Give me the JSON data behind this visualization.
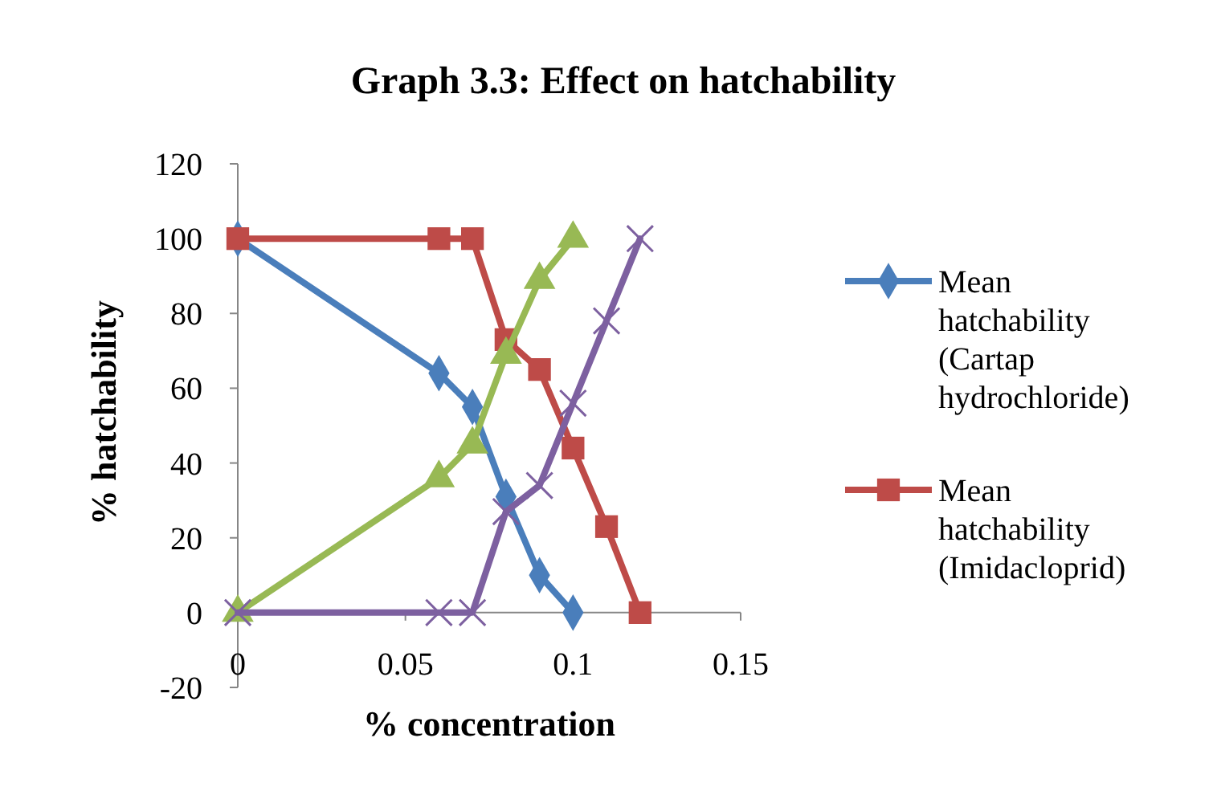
{
  "chart_data": {
    "type": "line",
    "title": "Graph 3.3: Effect on hatchability",
    "xlabel": "% concentration",
    "ylabel": "% hatchability",
    "xlim": [
      0,
      0.15
    ],
    "xticks": [
      0,
      0.05,
      0.1,
      0.15
    ],
    "ylim": [
      -20,
      120
    ],
    "yticks": [
      -20,
      0,
      20,
      40,
      60,
      80,
      100,
      120
    ],
    "grid": false,
    "legend": "right",
    "series": [
      {
        "name": "Mean hatchability (Cartap hydrochloride)",
        "color": "#4a7ebb",
        "marker": "diamond",
        "x": [
          0,
          0.06,
          0.07,
          0.08,
          0.09,
          0.1
        ],
        "values": [
          100,
          64,
          55,
          31,
          10,
          0
        ]
      },
      {
        "name": "Mean hatchability (Imidacloprid)",
        "color": "#be4b48",
        "marker": "square",
        "x": [
          0,
          0.06,
          0.07,
          0.08,
          0.09,
          0.1,
          0.11,
          0.12
        ],
        "values": [
          100,
          100,
          100,
          73,
          65,
          44,
          23,
          0
        ]
      },
      {
        "color": "#98b954",
        "marker": "triangle",
        "x": [
          0,
          0.06,
          0.07,
          0.08,
          0.09,
          0.1
        ],
        "values": [
          0,
          36,
          45,
          69,
          89,
          100
        ]
      },
      {
        "color": "#7d60a0",
        "marker": "cross",
        "x": [
          0,
          0.06,
          0.07,
          0.08,
          0.09,
          0.1,
          0.11,
          0.12
        ],
        "values": [
          0,
          0,
          0,
          27,
          34,
          56,
          78,
          100
        ]
      }
    ]
  }
}
